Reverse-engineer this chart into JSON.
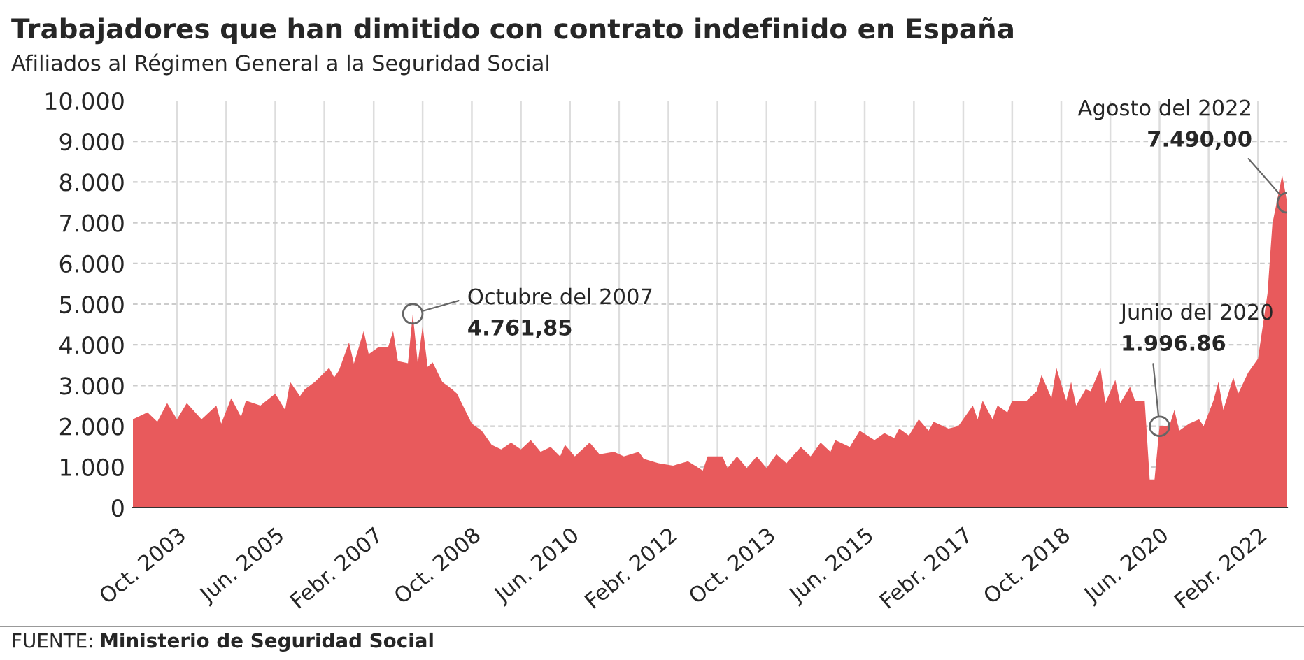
{
  "chart_data": {
    "type": "area",
    "title": "Trabajadores que han dimitido con contrato indefinido en España",
    "subtitle": "Afiliados al Régimen General a la Seguridad Social",
    "x": [
      "2003-01",
      "2003-04",
      "2003-06",
      "2003-08",
      "2003-10",
      "2003-12",
      "2004-03",
      "2004-06",
      "2004-07",
      "2004-09",
      "2004-11",
      "2004-12",
      "2005-03",
      "2005-06",
      "2005-08",
      "2005-09",
      "2005-11",
      "2005-12",
      "2006-02",
      "2006-05",
      "2006-06",
      "2006-07",
      "2006-09",
      "2006-10",
      "2006-12",
      "2007-01",
      "2007-03",
      "2007-05",
      "2007-06",
      "2007-07",
      "2007-09",
      "2007-10",
      "2007-11",
      "2007-12",
      "2008-01",
      "2008-02",
      "2008-04",
      "2008-06",
      "2008-07",
      "2008-10",
      "2008-12",
      "2009-02",
      "2009-04",
      "2009-06",
      "2009-08",
      "2009-10",
      "2009-12",
      "2010-02",
      "2010-04",
      "2010-05",
      "2010-07",
      "2010-10",
      "2010-12",
      "2011-03",
      "2011-05",
      "2011-08",
      "2011-09",
      "2011-12",
      "2012-03",
      "2012-06",
      "2012-09",
      "2012-10",
      "2013-01",
      "2013-02",
      "2013-04",
      "2013-06",
      "2013-08",
      "2013-10",
      "2013-12",
      "2014-02",
      "2014-05",
      "2014-07",
      "2014-09",
      "2014-11",
      "2014-12",
      "2015-03",
      "2015-05",
      "2015-08",
      "2015-10",
      "2015-12",
      "2016-01",
      "2016-03",
      "2016-05",
      "2016-07",
      "2016-08",
      "2016-11",
      "2017-01",
      "2017-04",
      "2017-05",
      "2017-06",
      "2017-08",
      "2017-09",
      "2017-11",
      "2017-12",
      "2018-03",
      "2018-05",
      "2018-06",
      "2018-08",
      "2018-09",
      "2018-11",
      "2018-12",
      "2019-01",
      "2019-03",
      "2019-04",
      "2019-06",
      "2019-07",
      "2019-09",
      "2019-10",
      "2019-12",
      "2020-01",
      "2020-03",
      "2020-04",
      "2020-05",
      "2020-06",
      "2020-08",
      "2020-09",
      "2020-10",
      "2020-12",
      "2021-02",
      "2021-03",
      "2021-05",
      "2021-06",
      "2021-07",
      "2021-09",
      "2021-10",
      "2021-12",
      "2022-02",
      "2022-04",
      "2022-05",
      "2022-07",
      "2022-08"
    ],
    "series": [
      {
        "color": "#e85a5c",
        "values": [
          2170,
          2340,
          2110,
          2570,
          2170,
          2570,
          2170,
          2510,
          2060,
          2690,
          2230,
          2630,
          2510,
          2800,
          2400,
          3090,
          2740,
          2910,
          3090,
          3430,
          3200,
          3370,
          4060,
          3540,
          4340,
          3770,
          3940,
          3940,
          4340,
          3600,
          3550,
          4761.85,
          3540,
          4460,
          3460,
          3570,
          3090,
          2910,
          2800,
          2060,
          1890,
          1540,
          1430,
          1600,
          1430,
          1660,
          1370,
          1490,
          1260,
          1540,
          1260,
          1600,
          1310,
          1370,
          1260,
          1370,
          1200,
          1090,
          1030,
          1140,
          910,
          1260,
          1260,
          970,
          1260,
          970,
          1260,
          970,
          1310,
          1090,
          1490,
          1260,
          1600,
          1370,
          1660,
          1490,
          1890,
          1660,
          1830,
          1710,
          1940,
          1770,
          2170,
          1890,
          2110,
          1940,
          2000,
          2510,
          2170,
          2630,
          2170,
          2510,
          2340,
          2630,
          2630,
          2860,
          3260,
          2690,
          3430,
          2630,
          3090,
          2510,
          2910,
          2860,
          3430,
          2570,
          3140,
          2570,
          2970,
          2630,
          2630,
          690,
          690,
          1996.86,
          2000,
          2400,
          1890,
          2060,
          2170,
          2000,
          2630,
          3090,
          2400,
          3200,
          2800,
          3310,
          3660,
          5260,
          6970,
          8170,
          7490
        ]
      }
    ],
    "xlim": [
      "2003-01",
      "2022-08"
    ],
    "xticks": [
      {
        "value": "2003-10",
        "label": "Oct. 2003"
      },
      {
        "value": "2004-08",
        "label": null
      },
      {
        "value": "2005-06",
        "label": "Jun. 2005"
      },
      {
        "value": "2006-04",
        "label": null
      },
      {
        "value": "2007-02",
        "label": "Febr. 2007"
      },
      {
        "value": "2007-12",
        "label": null
      },
      {
        "value": "2008-10",
        "label": "Oct. 2008"
      },
      {
        "value": "2009-08",
        "label": null
      },
      {
        "value": "2010-06",
        "label": "Jun. 2010"
      },
      {
        "value": "2011-04",
        "label": null
      },
      {
        "value": "2012-02",
        "label": "Febr. 2012"
      },
      {
        "value": "2012-12",
        "label": null
      },
      {
        "value": "2013-10",
        "label": "Oct. 2013"
      },
      {
        "value": "2014-08",
        "label": null
      },
      {
        "value": "2015-06",
        "label": "Jun. 2015"
      },
      {
        "value": "2016-04",
        "label": null
      },
      {
        "value": "2017-02",
        "label": "Febr. 2017"
      },
      {
        "value": "2017-12",
        "label": null
      },
      {
        "value": "2018-10",
        "label": "Oct. 2018"
      },
      {
        "value": "2019-08",
        "label": null
      },
      {
        "value": "2020-06",
        "label": "Jun. 2020"
      },
      {
        "value": "2021-04",
        "label": null
      },
      {
        "value": "2022-02",
        "label": "Febr. 2022"
      }
    ],
    "ylim": [
      0,
      10000
    ],
    "yticks": [
      0,
      {
        "value": 1000,
        "label": "1.000"
      },
      {
        "value": 2000,
        "label": "2.000"
      },
      {
        "value": 3000,
        "label": "3.000"
      },
      {
        "value": 4000,
        "label": "4.000"
      },
      {
        "value": 5000,
        "label": "5.000"
      },
      {
        "value": 6000,
        "label": "6.000"
      },
      {
        "value": 7000,
        "label": "7.000"
      },
      {
        "value": 8000,
        "label": "8.000"
      },
      {
        "value": 9000,
        "label": "9.000"
      },
      {
        "value": 10000,
        "label": "10.000"
      }
    ],
    "grid": true,
    "annotations": [
      {
        "text": "Octubre del 2007\n4.761,85",
        "x": "2007-10",
        "y": 4761.85
      },
      {
        "text": "Junio del 2020\n1.996.86",
        "x": "2020-06",
        "y": 1996.86
      },
      {
        "text": "Agosto del 2022\n7.490,00",
        "x": "2022-08",
        "y": 7490
      },
      "FUENTE: Ministerio de Seguridad Social"
    ]
  }
}
